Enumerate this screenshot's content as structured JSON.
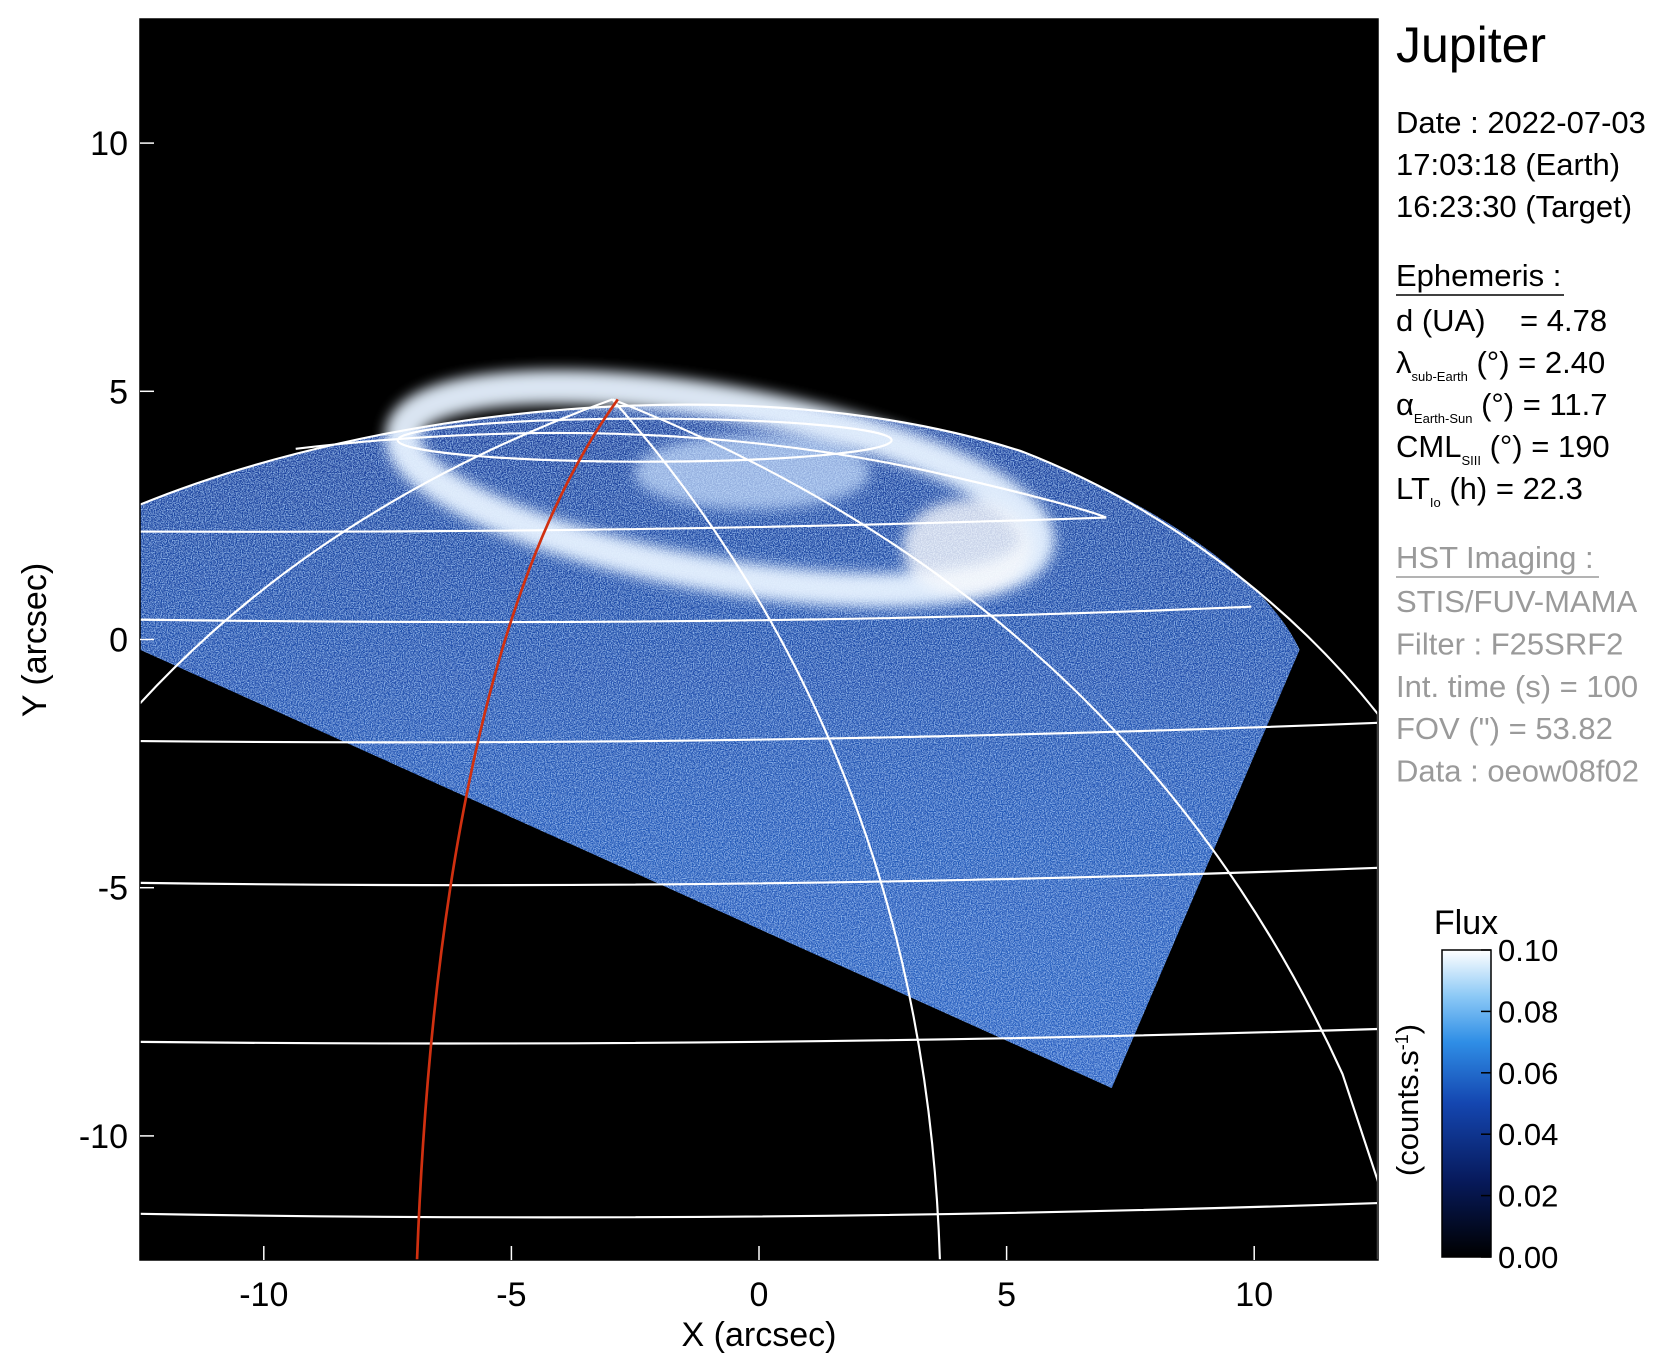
{
  "chart_data": {
    "type": "image",
    "xlabel": "X (arcsec)",
    "ylabel": "Y (arcsec)",
    "xlim": [
      -12.5,
      12.5
    ],
    "ylim": [
      -12.5,
      12.5
    ],
    "xticks": [
      -10,
      -5,
      0,
      5,
      10
    ],
    "yticks": [
      -10,
      -5,
      0,
      5,
      10
    ],
    "colorbar": {
      "title": "Flux",
      "label": "(counts.s",
      "label_sup": "-1",
      "label_end": ")",
      "lim": [
        0,
        0.1
      ],
      "ticks": [
        {
          "value": 0,
          "label": "0.00"
        },
        {
          "value": 0.02,
          "label": "0.02"
        },
        {
          "value": 0.04,
          "label": "0.04"
        },
        {
          "value": 0.06,
          "label": "0.06"
        },
        {
          "value": 0.08,
          "label": "0.08"
        },
        {
          "value": 0.1,
          "label": "0.10"
        }
      ]
    }
  },
  "panel": {
    "title": "Jupiter",
    "date_lines": [
      "Date : 2022-07-03",
      "17:03:18 (Earth)",
      "16:23:30 (Target)"
    ],
    "ephemeris": {
      "heading": "Ephemeris :",
      "rows": [
        {
          "main": "d (UA)    = 4.78"
        },
        {
          "main": "λ",
          "sub": "sub-Earth",
          "rest": " (°) = 2.40"
        },
        {
          "main": "α",
          "sub": "Earth-Sun",
          "rest": " (°) = 11.7"
        },
        {
          "main": "CML",
          "sub": "SIII",
          "rest": " (°) = 190"
        },
        {
          "main": "LT",
          "sub": "Io",
          "rest": " (h) = 22.3"
        }
      ]
    },
    "imaging": {
      "heading": "HST Imaging :",
      "lines": [
        "STIS/FUV-MAMA",
        "Filter : F25SRF2",
        "Int. time (s) = 100",
        "FOV (\") = 53.82",
        "Data : oeow08f02"
      ]
    }
  }
}
